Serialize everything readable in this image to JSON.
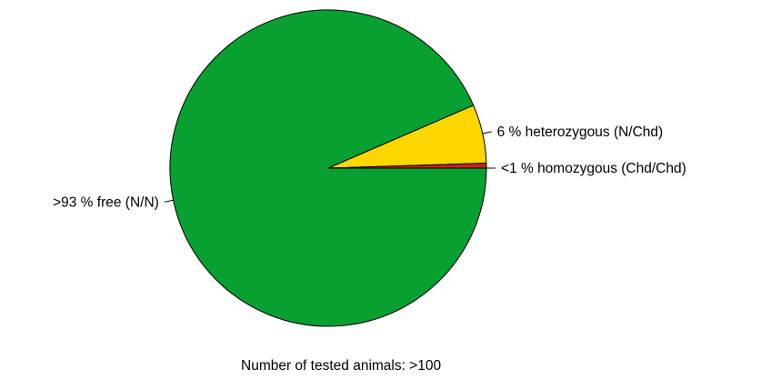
{
  "chart_data": {
    "type": "pie",
    "title": "",
    "footnote": "Number of tested animals: >100",
    "slices": [
      {
        "label": ">93 % free (N/N)",
        "value": 93.5,
        "color": "#08a030"
      },
      {
        "label": "6 % heterozygous (N/Chd)",
        "value": 6,
        "color": "#ffd700"
      },
      {
        "label": "<1 % homozygous (Chd/Chd)",
        "value": 0.5,
        "color": "#cc2222"
      }
    ],
    "start_angle_deg": 0,
    "direction": "clockwise",
    "legend": "none"
  }
}
